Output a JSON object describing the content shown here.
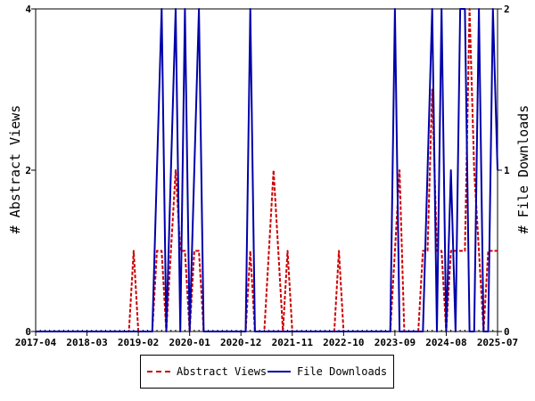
{
  "chart_data": {
    "type": "line",
    "title": "",
    "x_tick_labels": [
      "2017-04",
      "2018-03",
      "2019-02",
      "2020-01",
      "2020-12",
      "2021-11",
      "2022-10",
      "2023-09",
      "2024-08",
      "2025-07"
    ],
    "ylabel_left": "# Abstract Views",
    "ylabel_right": "# File Downloads",
    "ylim_left": [
      0,
      4
    ],
    "ylim_right": [
      0,
      2
    ],
    "yticks_left": [
      "0",
      "2",
      "4"
    ],
    "yticks_right": [
      "0",
      "1",
      "2"
    ],
    "grid": false,
    "legend_position": "bottom",
    "series": [
      {
        "name": "Abstract Views",
        "axis": "left",
        "color": "#cc0000",
        "style": "dashed",
        "points": [
          [
            "2017-04",
            0
          ],
          [
            "2018-08",
            0
          ],
          [
            "2018-12",
            0
          ],
          [
            "2019-01",
            1
          ],
          [
            "2019-02",
            0
          ],
          [
            "2019-05",
            0
          ],
          [
            "2019-06",
            1
          ],
          [
            "2019-07",
            1
          ],
          [
            "2019-08",
            0
          ],
          [
            "2019-09",
            1
          ],
          [
            "2019-10",
            2
          ],
          [
            "2019-11",
            1
          ],
          [
            "2019-12",
            1
          ],
          [
            "2020-01",
            0
          ],
          [
            "2020-02",
            1
          ],
          [
            "2020-03",
            1
          ],
          [
            "2020-04",
            0
          ],
          [
            "2021-01",
            0
          ],
          [
            "2021-02",
            1
          ],
          [
            "2021-03",
            0
          ],
          [
            "2021-05",
            0
          ],
          [
            "2021-06",
            1
          ],
          [
            "2021-07",
            2
          ],
          [
            "2021-08",
            1
          ],
          [
            "2021-09",
            0
          ],
          [
            "2021-10",
            1
          ],
          [
            "2021-11",
            0
          ],
          [
            "2022-08",
            0
          ],
          [
            "2022-09",
            1
          ],
          [
            "2022-10",
            0
          ],
          [
            "2023-08",
            0
          ],
          [
            "2023-09",
            1
          ],
          [
            "2023-10",
            2
          ],
          [
            "2023-11",
            0
          ],
          [
            "2024-02",
            0
          ],
          [
            "2024-03",
            1
          ],
          [
            "2024-04",
            1
          ],
          [
            "2024-05",
            3
          ],
          [
            "2024-06",
            1
          ],
          [
            "2024-07",
            1
          ],
          [
            "2024-08",
            0
          ],
          [
            "2024-09",
            1
          ],
          [
            "2024-10",
            1
          ],
          [
            "2024-11",
            1
          ],
          [
            "2024-12",
            1
          ],
          [
            "2025-01",
            4
          ],
          [
            "2025-02",
            2
          ],
          [
            "2025-03",
            1
          ],
          [
            "2025-04",
            0
          ],
          [
            "2025-05",
            1
          ],
          [
            "2025-06",
            1
          ],
          [
            "2025-07",
            1
          ]
        ]
      },
      {
        "name": "File Downloads",
        "axis": "right",
        "color": "#0000aa",
        "style": "solid",
        "points": [
          [
            "2017-04",
            0
          ],
          [
            "2019-05",
            0
          ],
          [
            "2019-06",
            1
          ],
          [
            "2019-07",
            2
          ],
          [
            "2019-08",
            0
          ],
          [
            "2019-09",
            1
          ],
          [
            "2019-10",
            2
          ],
          [
            "2019-11",
            0
          ],
          [
            "2019-12",
            2
          ],
          [
            "2020-01",
            0
          ],
          [
            "2020-02",
            1
          ],
          [
            "2020-03",
            2
          ],
          [
            "2020-04",
            0
          ],
          [
            "2021-01",
            0
          ],
          [
            "2021-02",
            2
          ],
          [
            "2021-03",
            0
          ],
          [
            "2023-08",
            0
          ],
          [
            "2023-09",
            2
          ],
          [
            "2023-10",
            0
          ],
          [
            "2024-03",
            0
          ],
          [
            "2024-04",
            1
          ],
          [
            "2024-05",
            2
          ],
          [
            "2024-06",
            0
          ],
          [
            "2024-07",
            2
          ],
          [
            "2024-08",
            0
          ],
          [
            "2024-09",
            1
          ],
          [
            "2024-10",
            0
          ],
          [
            "2024-11",
            2
          ],
          [
            "2024-12",
            2
          ],
          [
            "2025-01",
            0
          ],
          [
            "2025-02",
            0
          ],
          [
            "2025-03",
            2
          ],
          [
            "2025-04",
            0
          ],
          [
            "2025-05",
            0
          ],
          [
            "2025-06",
            2
          ],
          [
            "2025-07",
            1
          ]
        ]
      }
    ]
  },
  "legend": {
    "abstract_label": "Abstract Views",
    "downloads_label": "File Downloads"
  }
}
